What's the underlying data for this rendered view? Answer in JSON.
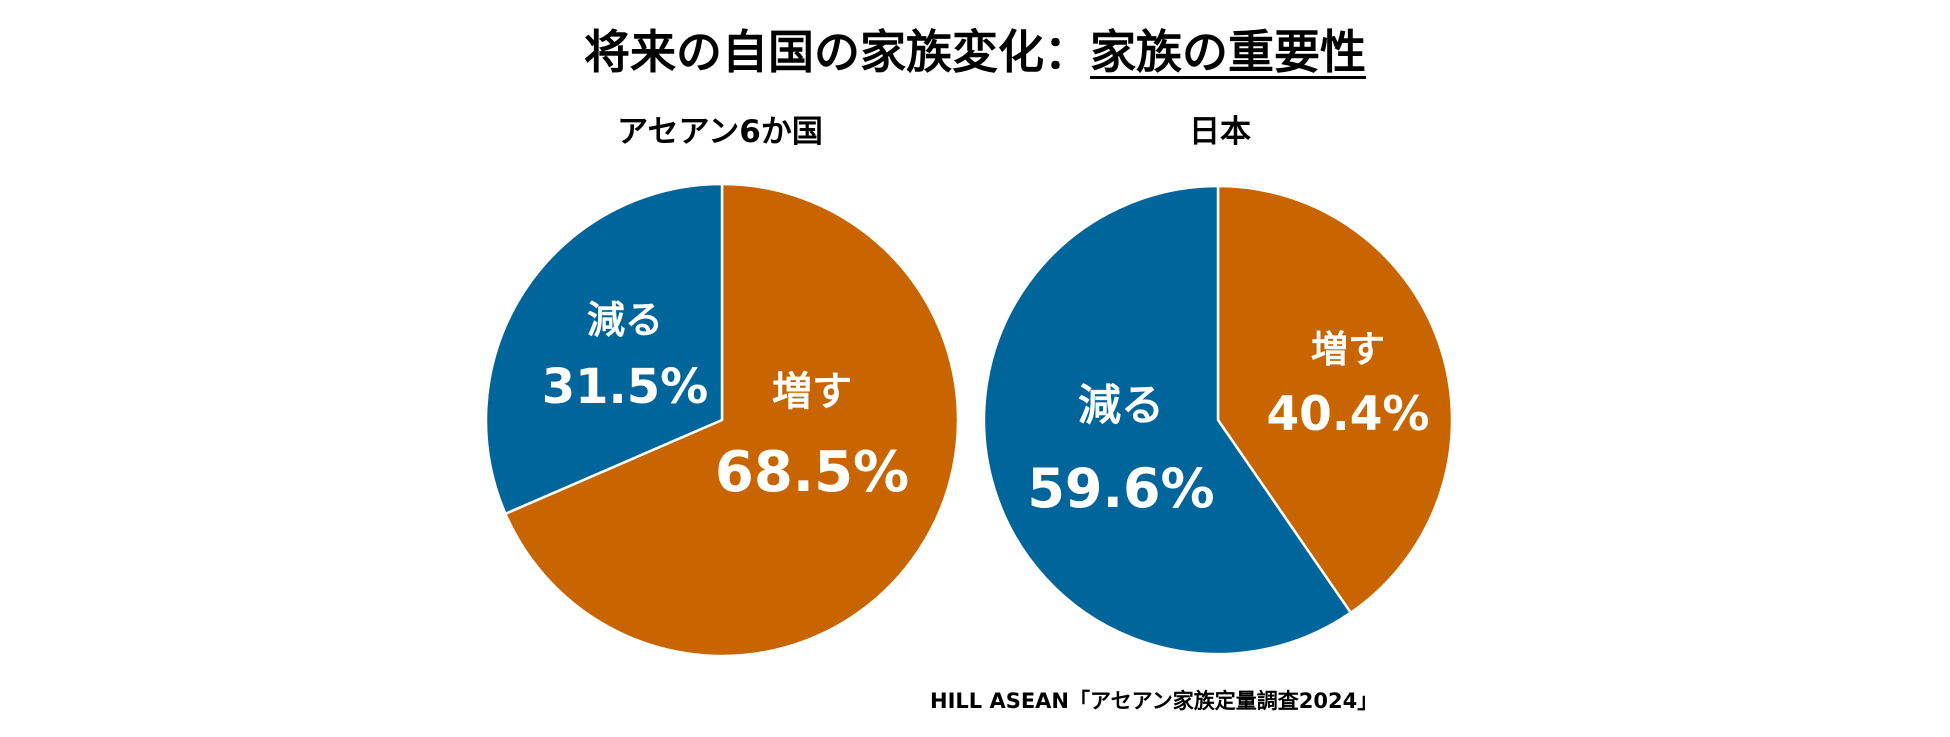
{
  "title": {
    "main": "将来の自国の家族変化：",
    "emphasis": "家族の重要性"
  },
  "source": "HILL ASEAN「アセアン家族定量調査2024」",
  "colors": {
    "increase": "#C96500",
    "decrease": "#00659A",
    "label_text": "#FFFFFF"
  },
  "chart_data": [
    {
      "type": "pie",
      "title": "アセアン6か国",
      "unit": "%",
      "slices": [
        {
          "label": "増す",
          "value": 68.5,
          "display": "68.5%"
        },
        {
          "label": "減る",
          "value": 31.5,
          "display": "31.5%"
        }
      ]
    },
    {
      "type": "pie",
      "title": "日本",
      "unit": "%",
      "slices": [
        {
          "label": "増す",
          "value": 40.4,
          "display": "40.4%"
        },
        {
          "label": "減る",
          "value": 59.6,
          "display": "59.6%"
        }
      ]
    }
  ]
}
